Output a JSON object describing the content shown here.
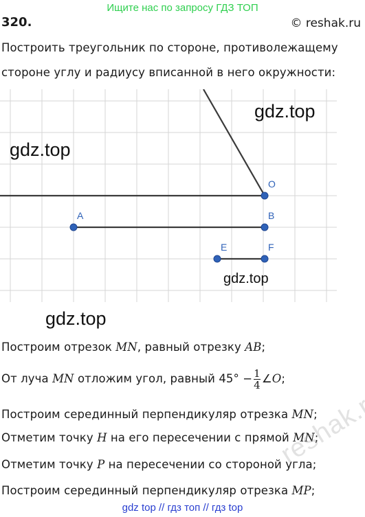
{
  "header": {
    "banner": "Ищите нас по запросу ГДЗ ТОП",
    "task_number": "320.",
    "site": "© reshak.ru"
  },
  "problem": {
    "line1": "Построить треугольник по стороне, противолежащему",
    "line2": "стороне углу и радиусу вписанной в него окружности:"
  },
  "figure": {
    "points": {
      "O": "O",
      "A": "A",
      "B": "B",
      "E": "E",
      "F": "F"
    },
    "line_color": "#3a3a3a",
    "point_color": "#2f62b8",
    "grid_color": "#d6d6d6"
  },
  "watermarks": {
    "w1": "gdz.top",
    "w2": "gdz.top",
    "w3": "gdz.top",
    "w4": "gdz.top",
    "reshak": "reshak.ru"
  },
  "solution": {
    "s1_a": "Построим отрезок ",
    "s1_v1": "MN",
    "s1_b": ", равный отрезку ",
    "s1_v2": "AB",
    "s1_c": ";",
    "s2_a": "От луча ",
    "s2_v1": "MN",
    "s2_b": " отложим угол, равный 45° −",
    "s2_num": "1",
    "s2_den": "4",
    "s2_c": "∠",
    "s2_v2": "O",
    "s2_d": ";",
    "s3_a": "Построим серединный перпендикуляр отрезка ",
    "s3_v1": "MN",
    "s3_b": ";",
    "s4_a": "Отметим точку ",
    "s4_v1": "H",
    "s4_b": " на его пересечении с прямой ",
    "s4_v2": "MN",
    "s4_c": ";",
    "s5_a": "Отметим точку ",
    "s5_v1": "P",
    "s5_b": " на пересечении со стороной угла;",
    "s6_a": "Построим серединный перпендикуляр отрезка ",
    "s6_v1": "MP",
    "s6_b": ";"
  },
  "footer": {
    "text": "gdz top  //  гдз топ  //  гдз top"
  }
}
